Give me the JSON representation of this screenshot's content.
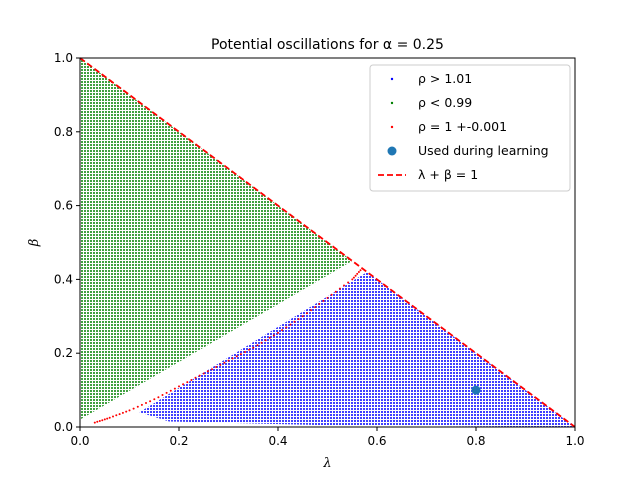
{
  "chart_data": {
    "type": "scatter",
    "title": "Potential oscillations for α = 0.25",
    "xlabel": "λ",
    "ylabel": "β",
    "xlim": [
      0.0,
      1.0
    ],
    "ylim": [
      0.0,
      1.0
    ],
    "xticks": [
      "0.0",
      "0.2",
      "0.4",
      "0.6",
      "0.8",
      "1.0"
    ],
    "yticks": [
      "0.0",
      "0.2",
      "0.4",
      "0.6",
      "0.8",
      "1.0"
    ],
    "grid": false,
    "legend_placement": "top-right",
    "alpha": 0.25,
    "series": [
      {
        "name": "ρ > 1.01",
        "kind": "dense-scatter-region",
        "color": "#0000ff",
        "region_polygon": [
          [
            0.12,
            0.04
          ],
          [
            0.18,
            0.015
          ],
          [
            0.5,
            0.005
          ],
          [
            1.0,
            0.0
          ],
          [
            0.58,
            0.42
          ]
        ]
      },
      {
        "name": "ρ < 0.99",
        "kind": "dense-scatter-region",
        "color": "#008000",
        "region_polygon": [
          [
            0.0,
            0.02
          ],
          [
            0.0,
            1.0
          ],
          [
            0.55,
            0.45
          ]
        ]
      },
      {
        "name": "ρ = 1 +-0.001",
        "kind": "curve-points",
        "color": "#ff0000",
        "x": [
          0.03,
          0.06,
          0.1,
          0.15,
          0.2,
          0.25,
          0.3,
          0.35,
          0.4,
          0.45,
          0.5,
          0.55,
          0.57
        ],
        "y": [
          0.012,
          0.025,
          0.045,
          0.075,
          0.11,
          0.145,
          0.18,
          0.215,
          0.255,
          0.3,
          0.35,
          0.4,
          0.43
        ]
      },
      {
        "name": "Used during learning",
        "kind": "point",
        "color": "#1f77b4",
        "x": [
          0.8
        ],
        "y": [
          0.1
        ]
      },
      {
        "name": "λ + β = 1",
        "kind": "dashed-line",
        "color": "#ff0000",
        "x": [
          0.0,
          1.0
        ],
        "y": [
          1.0,
          0.0
        ]
      }
    ]
  }
}
